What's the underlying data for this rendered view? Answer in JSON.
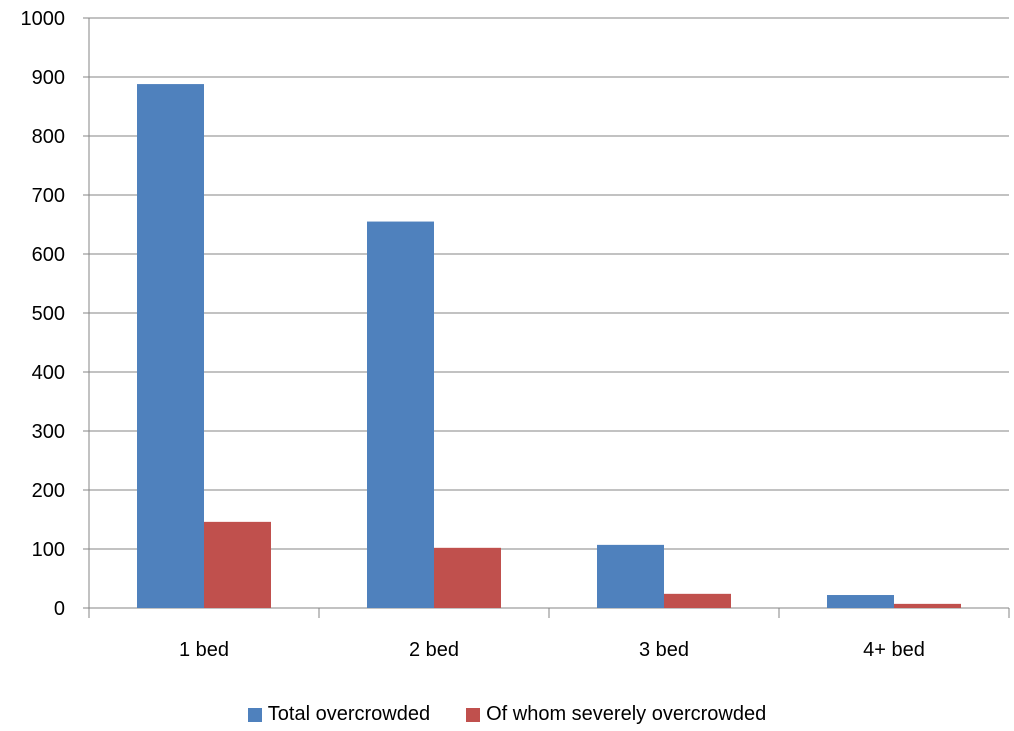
{
  "chart_data": {
    "type": "bar",
    "title": "",
    "xlabel": "",
    "ylabel": "",
    "categories": [
      "1 bed",
      "2 bed",
      "3 bed",
      "4+ bed"
    ],
    "series": [
      {
        "name": "Total overcrowded",
        "color": "#4F81BD",
        "values": [
          888,
          655,
          107,
          22
        ]
      },
      {
        "name": "Of whom severely overcrowded",
        "color": "#C0504D",
        "values": [
          146,
          102,
          24,
          7
        ]
      }
    ],
    "ylim": [
      0,
      1000
    ],
    "yticks": [
      "0",
      "100",
      "200",
      "300",
      "400",
      "500",
      "600",
      "700",
      "800",
      "900",
      "1000"
    ],
    "grid": true,
    "legend_position": "bottom"
  }
}
